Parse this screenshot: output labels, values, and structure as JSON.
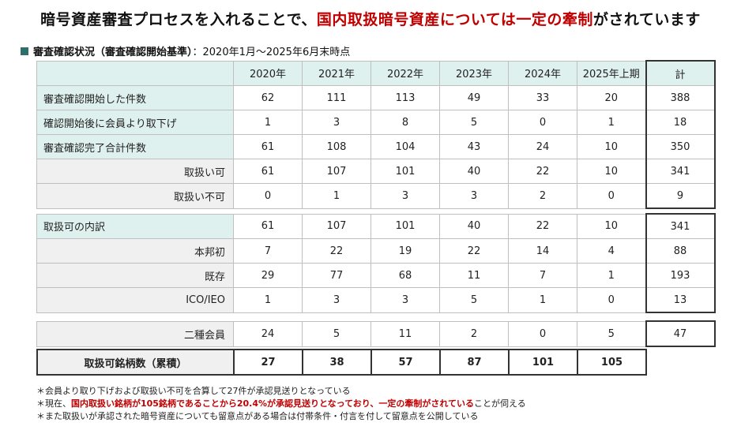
{
  "title": {
    "part1": "暗号資産審査プロセスを入れることで、",
    "part2_red": "国内取扱暗号資産については一定の牽制",
    "part3": "がされています"
  },
  "subtitle": {
    "bold": "審査確認状況（審査確認開始基準）",
    "rest": "：2020年1月〜2025年6月末時点"
  },
  "header": [
    "",
    "2020年",
    "2021年",
    "2022年",
    "2023年",
    "2024年",
    "2025年上期",
    "計"
  ],
  "section1": [
    {
      "label": "審査確認開始した件数",
      "values": [
        "62",
        "111",
        "113",
        "49",
        "33",
        "20"
      ],
      "total": "388"
    },
    {
      "label": "確認開始後に会員より取下げ",
      "values": [
        "1",
        "3",
        "8",
        "5",
        "0",
        "1"
      ],
      "total": "18"
    },
    {
      "label": "審査確認完了合計件数",
      "values": [
        "61",
        "108",
        "104",
        "43",
        "24",
        "10"
      ],
      "total": "350"
    },
    {
      "label": "取扱い可",
      "values": [
        "61",
        "107",
        "101",
        "40",
        "22",
        "10"
      ],
      "total": "341"
    },
    {
      "label": "取扱い不可",
      "values": [
        "0",
        "1",
        "3",
        "3",
        "2",
        "0"
      ],
      "total": "9"
    }
  ],
  "section2": [
    {
      "label": "取扱可の内訳",
      "values": [
        "61",
        "107",
        "101",
        "40",
        "22",
        "10"
      ],
      "total": "341"
    },
    {
      "label": "本邦初",
      "values": [
        "7",
        "22",
        "19",
        "22",
        "14",
        "4"
      ],
      "total": "88"
    },
    {
      "label": "既存",
      "values": [
        "29",
        "77",
        "68",
        "11",
        "7",
        "1"
      ],
      "total": "193"
    },
    {
      "label": "ICO/IEO",
      "values": [
        "1",
        "3",
        "3",
        "5",
        "1",
        "0"
      ],
      "total": "13"
    }
  ],
  "section3": [
    {
      "label": "二種会員",
      "values": [
        "24",
        "5",
        "11",
        "2",
        "0",
        "5"
      ],
      "total": "47"
    }
  ],
  "cumulative": {
    "label": "取扱可銘柄数（累積）",
    "values": [
      "27",
      "38",
      "57",
      "87",
      "101",
      "105"
    ]
  },
  "notes": {
    "n1": "＊会員より取り下げおよび取扱い不可を合算して27件が承認見送りとなっている",
    "n2_pre": "＊現在、",
    "n2_red1": "国内取扱い銘柄が105銘柄であることから20.4%が承認見送りとなっており、一定の牽制がされている",
    "n2_post": "ことが伺える",
    "n3": "＊また取扱いが承認された暗号資産についても留意点がある場合は付帯条件・付言を付して留意点を公開している"
  }
}
